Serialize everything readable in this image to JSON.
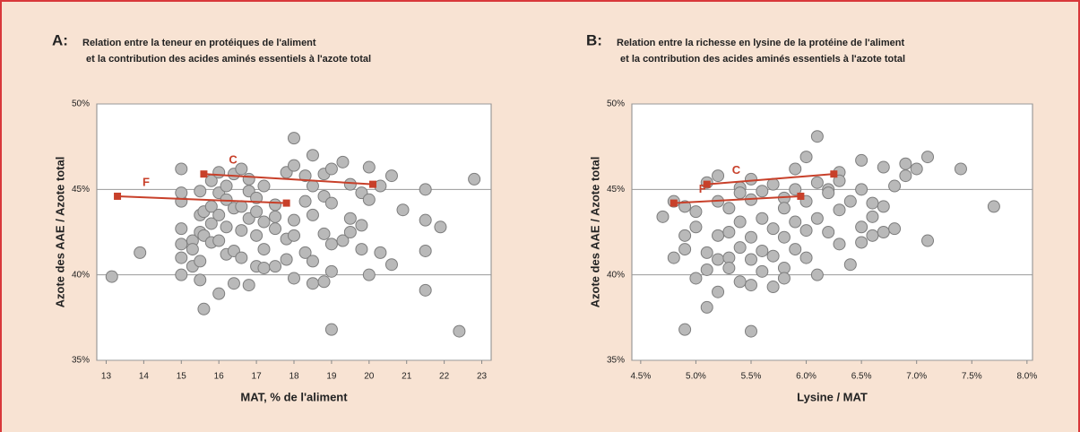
{
  "chart_data": [
    {
      "type": "scatter",
      "panel_label": "A:",
      "title": [
        "Relation entre la teneur en protéiques de l'aliment",
        "et la contribution des acides aminés essentiels à l'azote total"
      ],
      "xlabel": "MAT, % de l'aliment",
      "ylabel": "Azote des AAE / Azote total",
      "xlim": [
        12.75,
        23.25
      ],
      "ylim": [
        35,
        50
      ],
      "xticks": [
        13,
        14,
        15,
        16,
        17,
        18,
        19,
        20,
        21,
        22,
        23
      ],
      "yticks": [
        {
          "value": 35,
          "label": "35%"
        },
        {
          "value": 40,
          "label": "40%"
        },
        {
          "value": 45,
          "label": "45%"
        },
        {
          "value": 50,
          "label": "50%"
        }
      ],
      "grid": "y",
      "color": "#b9b9b9",
      "x": [
        13.15,
        13.9,
        15,
        15,
        15,
        15,
        15,
        15,
        15,
        15.3,
        15.3,
        15.3,
        15.5,
        15.5,
        15.5,
        15.5,
        15.5,
        15.6,
        15.6,
        15.6,
        15.8,
        15.8,
        15.8,
        15.8,
        16,
        16,
        16,
        16,
        16,
        16.2,
        16.2,
        16.2,
        16.2,
        16.4,
        16.4,
        16.4,
        16.4,
        16.6,
        16.6,
        16.6,
        16.6,
        16.8,
        16.8,
        16.8,
        16.8,
        17,
        17,
        17,
        17,
        17.2,
        17.2,
        17.2,
        17.2,
        17.5,
        17.5,
        17.5,
        17.5,
        17.8,
        17.8,
        17.8,
        18,
        18,
        18,
        18,
        18,
        18.3,
        18.3,
        18.3,
        18.5,
        18.5,
        18.5,
        18.5,
        18.5,
        18.8,
        18.8,
        18.8,
        18.8,
        19,
        19,
        19,
        19,
        19,
        19.3,
        19.3,
        19.5,
        19.5,
        19.5,
        19.8,
        19.8,
        19.8,
        20,
        20,
        20,
        20.3,
        20.3,
        20.6,
        20.6,
        20.9,
        21.5,
        21.5,
        21.5,
        21.5,
        21.9,
        22.4,
        22.8
      ],
      "values": [
        39.9,
        41.3,
        46.2,
        44.3,
        42.7,
        41.8,
        41,
        40,
        44.8,
        42,
        40.5,
        41.5,
        43.5,
        42.5,
        40.8,
        39.7,
        44.9,
        38,
        43.7,
        42.3,
        45.5,
        43,
        41.9,
        44,
        46,
        43.5,
        42,
        38.9,
        44.8,
        45.2,
        42.8,
        41.2,
        44.4,
        45.9,
        43.9,
        41.4,
        39.5,
        46.2,
        44,
        42.6,
        41,
        44.9,
        43.3,
        39.4,
        45.6,
        43.7,
        42.3,
        40.5,
        44.5,
        45.2,
        43.1,
        41.5,
        40.4,
        44.1,
        42.7,
        43.4,
        40.5,
        46,
        42.1,
        40.9,
        48,
        46.4,
        43.2,
        42.3,
        39.8,
        45.8,
        44.3,
        41.3,
        47,
        45.2,
        43.5,
        40.8,
        39.5,
        45.9,
        44.6,
        42.4,
        39.6,
        46.2,
        44.2,
        41.8,
        36.8,
        40.2,
        46.6,
        42,
        45.3,
        43.3,
        42.5,
        44.8,
        42.9,
        41.5,
        46.3,
        44.4,
        40,
        45.2,
        41.3,
        45.8,
        40.6,
        43.8,
        45,
        43.2,
        39.1,
        41.4,
        42.8,
        36.7,
        45.6
      ],
      "trend_lines": [
        {
          "name": "F",
          "color": "#c8402a",
          "x": [
            13.3,
            17.8
          ],
          "values": [
            44.6,
            44.2
          ]
        },
        {
          "name": "C",
          "color": "#c8402a",
          "x": [
            15.6,
            20.1
          ],
          "values": [
            45.9,
            45.3
          ]
        }
      ]
    },
    {
      "type": "scatter",
      "panel_label": "B:",
      "title": [
        "Relation entre la richesse en lysine de la protéine de l'aliment",
        "et la contribution des acides aminés essentiels à l'azote total"
      ],
      "xlabel": "Lysine / MAT",
      "ylabel": "Azote des AAE / Azote total",
      "xlim": [
        4.42,
        8.05
      ],
      "ylim": [
        35,
        50
      ],
      "xticks": [
        {
          "value": 4.5,
          "label": "4.5%"
        },
        {
          "value": 5,
          "label": "5.0%"
        },
        {
          "value": 5.5,
          "label": "5.5%"
        },
        {
          "value": 6,
          "label": "6.0%"
        },
        {
          "value": 6.5,
          "label": "6.5%"
        },
        {
          "value": 7,
          "label": "7.0%"
        },
        {
          "value": 7.5,
          "label": "7.5%"
        },
        {
          "value": 8,
          "label": "8.0%"
        }
      ],
      "yticks": [
        {
          "value": 35,
          "label": "35%"
        },
        {
          "value": 40,
          "label": "40%"
        },
        {
          "value": 45,
          "label": "45%"
        },
        {
          "value": 50,
          "label": "50%"
        }
      ],
      "grid": "y",
      "color": "#b9b9b9",
      "x": [
        4.7,
        4.8,
        4.8,
        4.9,
        4.9,
        4.9,
        4.9,
        5,
        5,
        5,
        5.1,
        5.1,
        5.1,
        5.1,
        5.2,
        5.2,
        5.2,
        5.2,
        5.2,
        5.3,
        5.3,
        5.3,
        5.3,
        5.4,
        5.4,
        5.4,
        5.4,
        5.4,
        5.5,
        5.5,
        5.5,
        5.5,
        5.5,
        5.5,
        5.6,
        5.6,
        5.6,
        5.6,
        5.7,
        5.7,
        5.7,
        5.7,
        5.8,
        5.8,
        5.8,
        5.8,
        5.8,
        5.9,
        5.9,
        5.9,
        5.9,
        6,
        6,
        6,
        6,
        6.1,
        6.1,
        6.1,
        6.1,
        6.2,
        6.2,
        6.2,
        6.3,
        6.3,
        6.3,
        6.3,
        6.4,
        6.4,
        6.5,
        6.5,
        6.5,
        6.5,
        6.6,
        6.6,
        6.6,
        6.7,
        6.7,
        6.7,
        6.8,
        6.8,
        6.9,
        6.9,
        7,
        7.1,
        7.1,
        7.4,
        7.7
      ],
      "values": [
        43.4,
        41,
        44.3,
        42.3,
        41.5,
        36.8,
        44,
        39.8,
        42.8,
        43.7,
        41.3,
        38.1,
        45.4,
        40.3,
        42.3,
        44.3,
        40.9,
        45.8,
        39,
        41,
        43.9,
        42.5,
        40.4,
        45.1,
        41.6,
        43.1,
        39.6,
        44.8,
        36.7,
        42.2,
        40.9,
        45.6,
        44.4,
        39.4,
        43.3,
        41.4,
        40.2,
        44.9,
        42.7,
        45.3,
        39.3,
        41.1,
        44.5,
        42.2,
        40.4,
        39.8,
        43.9,
        46.2,
        41.5,
        43.1,
        45,
        46.9,
        42.6,
        44.3,
        41,
        48.1,
        45.4,
        43.3,
        40,
        45,
        42.5,
        44.8,
        46,
        43.8,
        41.8,
        45.5,
        44.3,
        40.6,
        46.7,
        45,
        42.8,
        41.9,
        44.2,
        42.3,
        43.4,
        46.3,
        44,
        42.5,
        45.2,
        42.7,
        46.5,
        45.8,
        46.2,
        46.9,
        42,
        46.2,
        44
      ],
      "trend_lines": [
        {
          "name": "F",
          "color": "#c8402a",
          "x": [
            4.8,
            5.95
          ],
          "values": [
            44.2,
            44.6
          ]
        },
        {
          "name": "C",
          "color": "#c8402a",
          "x": [
            5.1,
            6.25
          ],
          "values": [
            45.3,
            45.9
          ]
        }
      ]
    }
  ]
}
